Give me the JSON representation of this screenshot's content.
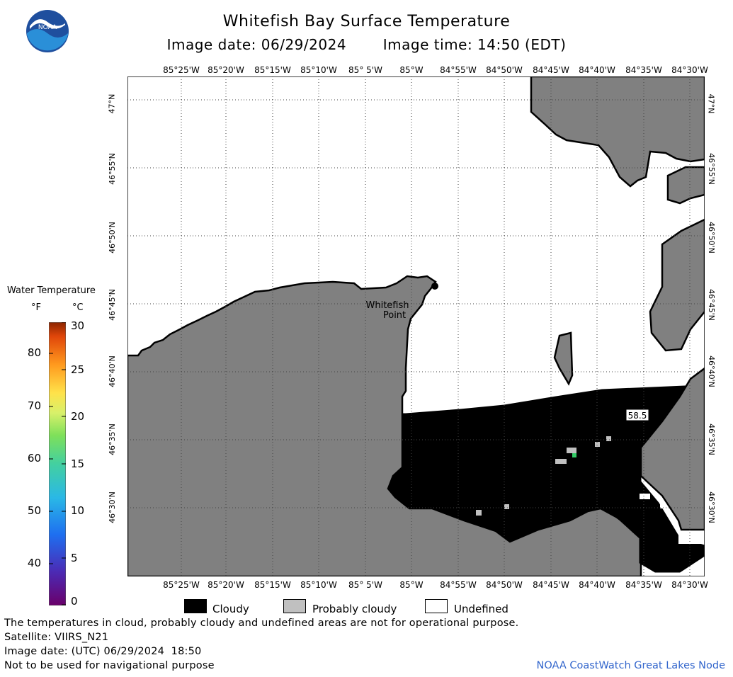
{
  "header": {
    "title": "Whitefish Bay Surface Temperature",
    "image_date": "Image date: 06/29/2024",
    "image_time": "Image time: 14:50 (EDT)"
  },
  "logo": {
    "text": "NOAA"
  },
  "axes": {
    "longitude_labels": [
      "85°25'W",
      "85°20'W",
      "85°15'W",
      "85°10'W",
      "85° 5'W",
      "85°W",
      "84°55'W",
      "84°50'W",
      "84°45'W",
      "84°40'W",
      "84°35'W",
      "84°30'W"
    ],
    "latitude_labels": [
      "47°N",
      "46°55'N",
      "46°50'N",
      "46°45'N",
      "46°40'N",
      "46°35'N",
      "46°30'N"
    ]
  },
  "map": {
    "place_label": [
      "Whitefish",
      "Point"
    ],
    "temperature_label": "58.5",
    "colors": {
      "land": "#808080",
      "cloud": "#000000",
      "undefined": "#ffffff",
      "probably_cloudy": "#c0c0c0",
      "grid": "#444444"
    }
  },
  "legend": {
    "title": "Water Temperature",
    "unit_f": "°F",
    "unit_c": "°C",
    "f_ticks": [
      "80",
      "70",
      "60",
      "50",
      "40"
    ],
    "c_ticks": [
      "30",
      "25",
      "20",
      "15",
      "10",
      "5",
      "0"
    ],
    "c_range": [
      0,
      30
    ]
  },
  "key": {
    "cloudy": "Cloudy",
    "probably_cloudy": "Probably cloudy",
    "undefined": "Undefined"
  },
  "footer": {
    "disclaimer": "The temperatures in cloud, probably cloudy and undefined areas are not for operational purpose.",
    "satellite": "Satellite: VIIRS_N21",
    "utc_date": "Image date: (UTC) 06/29/2024  18:50",
    "nav_warning": "Not to be used for navigational purpose",
    "credit": "NOAA CoastWatch Great Lakes Node"
  }
}
